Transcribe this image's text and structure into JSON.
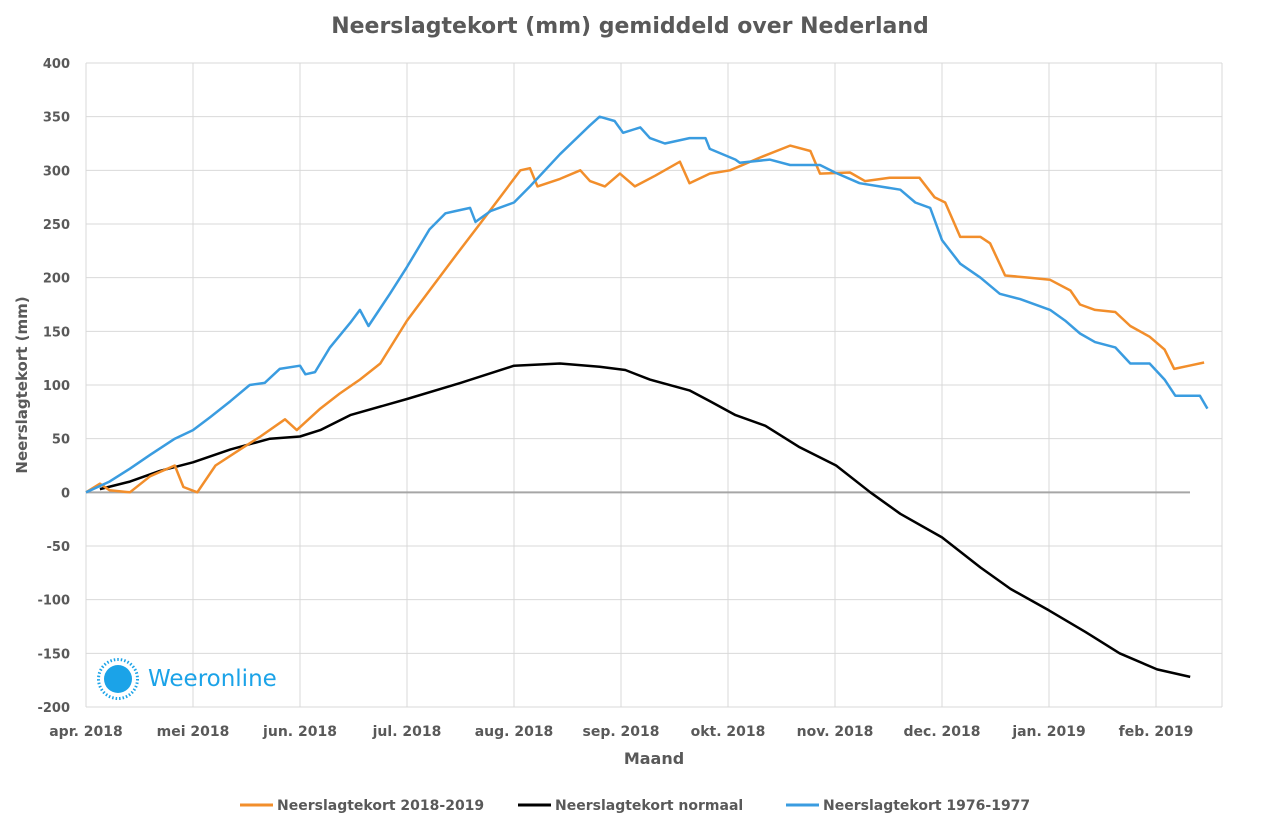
{
  "chart_data": {
    "type": "line",
    "title": "Neerslagtekort (mm) gemiddeld over Nederland",
    "xlabel": "Maand",
    "ylabel": "Neerslagtekort (mm)",
    "ylim": [
      -200,
      400
    ],
    "yticks": [
      400,
      350,
      300,
      250,
      200,
      150,
      100,
      50,
      0,
      -50,
      -100,
      -150,
      -200
    ],
    "xlim_months": [
      0,
      10.5
    ],
    "x_unit": "months since 1 apr 2018",
    "xticks": [
      "apr. 2018",
      "mei 2018",
      "jun. 2018",
      "jul. 2018",
      "aug. 2018",
      "sep. 2018",
      "okt. 2018",
      "nov. 2018",
      "dec. 2018",
      "jan. 2019",
      "feb. 2019"
    ],
    "grid": true,
    "legend_position": "bottom",
    "series": [
      {
        "name": "Neerslagtekort 2018-2019",
        "color": "#f28e2b",
        "x": [
          0,
          0.13,
          0.22,
          0.41,
          0.6,
          0.83,
          0.91,
          1.04,
          1.21,
          1.44,
          1.63,
          1.86,
          1.97,
          2.19,
          2.37,
          2.56,
          2.75,
          3.0,
          3.21,
          3.45,
          3.68,
          3.87,
          4.06,
          4.15,
          4.22,
          4.43,
          4.62,
          4.71,
          4.85,
          4.99,
          5.13,
          5.32,
          5.55,
          5.64,
          5.83,
          6.02,
          6.3,
          6.58,
          6.77,
          6.86,
          7.14,
          7.28,
          7.51,
          7.79,
          7.93,
          8.03,
          8.17,
          8.36,
          8.45,
          8.59,
          8.82,
          9.01,
          9.2,
          9.29,
          9.43,
          9.62,
          9.76,
          9.94,
          10.08,
          10.17,
          10.31,
          10.45
        ],
        "y": [
          0,
          8,
          2,
          0,
          15,
          25,
          5,
          0,
          25,
          40,
          52,
          68,
          58,
          78,
          92,
          105,
          120,
          160,
          188,
          220,
          250,
          275,
          300,
          302,
          285,
          292,
          300,
          290,
          285,
          297,
          285,
          295,
          308,
          288,
          297,
          300,
          312,
          323,
          318,
          297,
          298,
          290,
          293,
          293,
          275,
          270,
          238,
          238,
          232,
          202,
          200,
          198,
          188,
          175,
          170,
          168,
          155,
          145,
          133,
          115,
          118,
          121
        ]
      },
      {
        "name": "Neerslagtekort normaal",
        "color": "#000000",
        "x": [
          0.13,
          0.41,
          0.69,
          1.0,
          1.35,
          1.72,
          2.0,
          2.19,
          2.47,
          3.0,
          3.5,
          4.0,
          4.43,
          4.8,
          5.04,
          5.27,
          5.64,
          5.83,
          6.07,
          6.35,
          6.67,
          7.01,
          7.33,
          7.61,
          8.0,
          8.36,
          8.64,
          9.0,
          9.34,
          9.66,
          10.01,
          10.32
        ],
        "y": [
          3,
          10,
          20,
          28,
          40,
          50,
          52,
          58,
          72,
          87,
          102,
          118,
          120,
          117,
          114,
          105,
          95,
          85,
          72,
          62,
          42,
          25,
          0,
          -20,
          -42,
          -70,
          -90,
          -110,
          -130,
          -150,
          -165,
          -172
        ]
      },
      {
        "name": "Neerslagtekort 1976-1977",
        "color": "#3a9ce0",
        "x": [
          0,
          0.22,
          0.41,
          0.6,
          0.83,
          1.0,
          1.16,
          1.35,
          1.53,
          1.67,
          1.81,
          2.0,
          2.05,
          2.14,
          2.28,
          2.47,
          2.56,
          2.64,
          2.84,
          3.0,
          3.21,
          3.36,
          3.45,
          3.59,
          3.64,
          3.78,
          4.0,
          4.15,
          4.43,
          4.71,
          4.8,
          4.94,
          5.02,
          5.18,
          5.27,
          5.41,
          5.64,
          5.79,
          5.83,
          6.07,
          6.11,
          6.39,
          6.58,
          6.86,
          7.0,
          7.23,
          7.61,
          7.75,
          7.89,
          8.0,
          8.17,
          8.36,
          8.54,
          8.73,
          9.01,
          9.15,
          9.29,
          9.43,
          9.62,
          9.76,
          9.94,
          10.08,
          10.18,
          10.32,
          10.41,
          10.48
        ],
        "y": [
          0,
          10,
          22,
          35,
          50,
          58,
          70,
          85,
          100,
          102,
          115,
          118,
          110,
          112,
          135,
          158,
          170,
          155,
          185,
          210,
          245,
          260,
          262,
          265,
          252,
          262,
          270,
          285,
          315,
          342,
          350,
          346,
          335,
          340,
          330,
          325,
          330,
          330,
          320,
          310,
          307,
          310,
          305,
          305,
          298,
          288,
          282,
          270,
          265,
          235,
          213,
          200,
          185,
          180,
          170,
          160,
          148,
          140,
          135,
          120,
          120,
          105,
          90,
          90,
          90,
          78
        ]
      }
    ]
  },
  "logo": {
    "text": "Weeronline"
  }
}
